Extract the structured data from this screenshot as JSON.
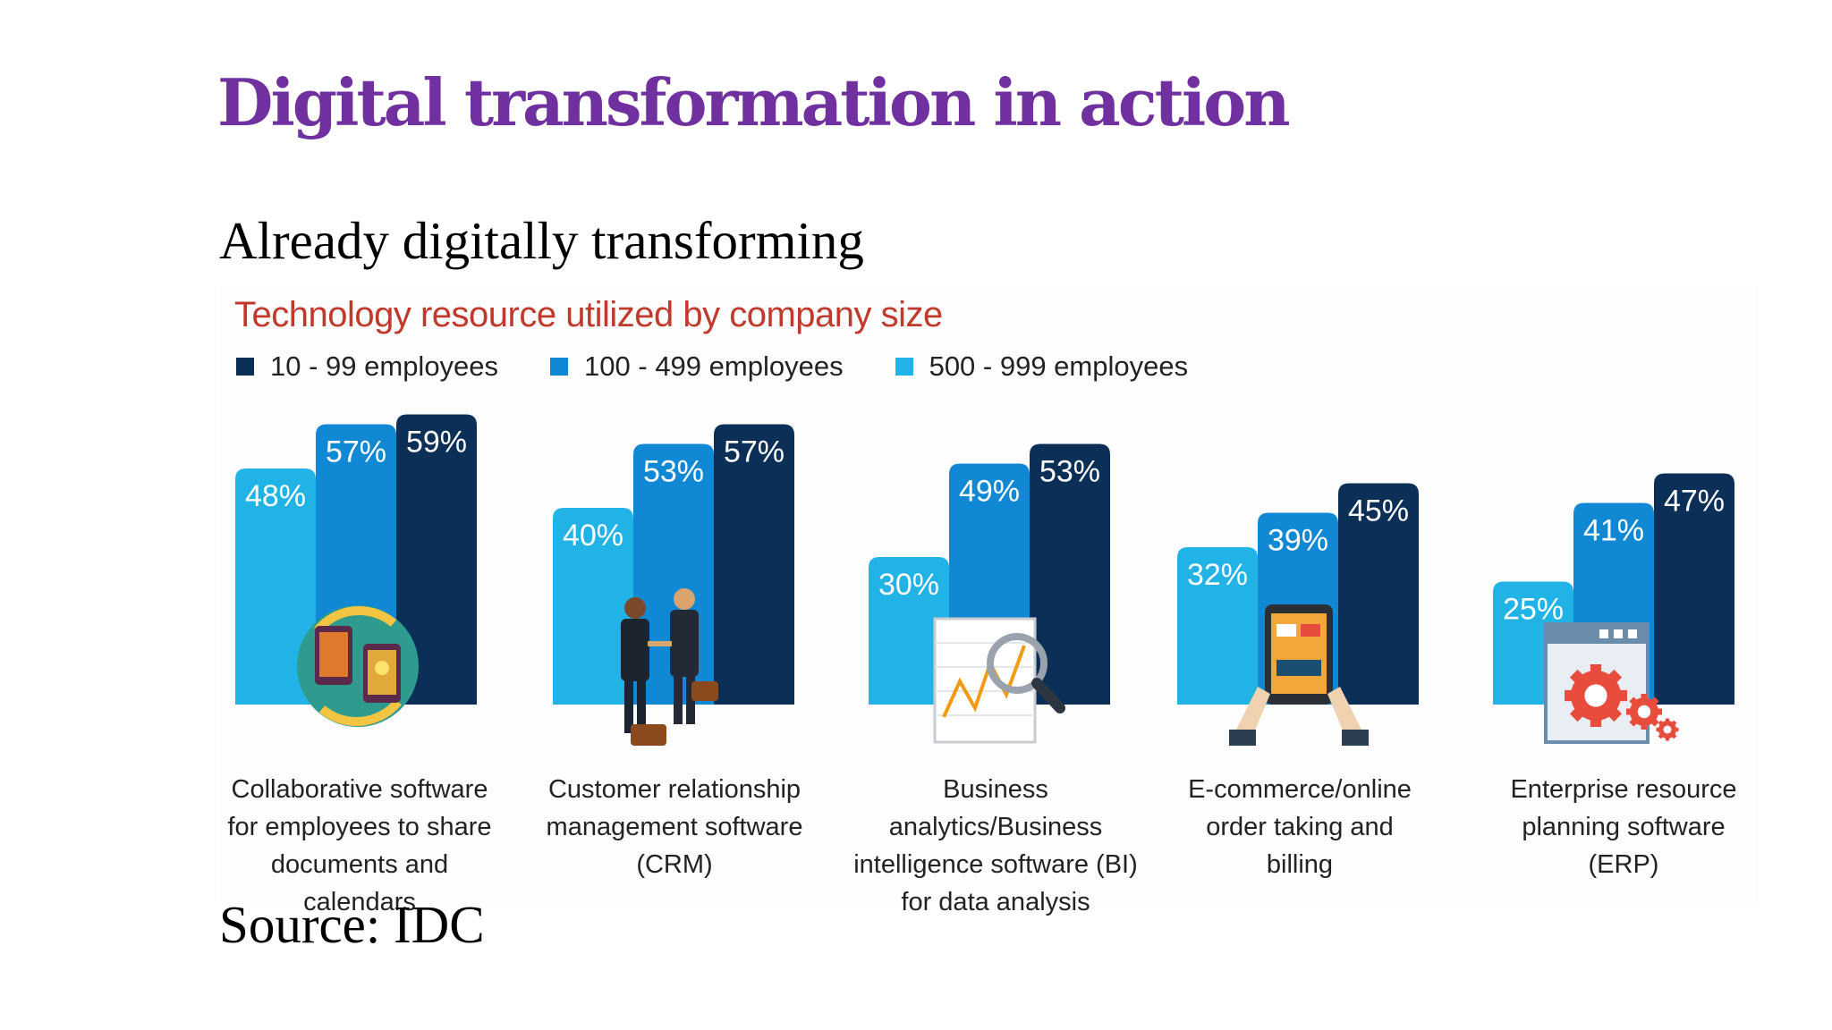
{
  "slide": {
    "title": "Digital transformation in action",
    "subtitle": "Already digitally transforming",
    "source": "Source: IDC"
  },
  "colors": {
    "title": "#7030a0",
    "chart_title": "#c0392b"
  },
  "chart_data": {
    "type": "bar",
    "title": "Technology resource utilized by company size",
    "xlabel": "",
    "ylabel": "",
    "ylim": [
      0,
      100
    ],
    "grid": false,
    "legend_position": "top-left",
    "value_suffix": "%",
    "categories": [
      "Collaborative software\nfor employees to share\ndocuments and calendars",
      "Customer relationship\nmanagement software\n(CRM)",
      "Business analytics/Business\nintelligence software (BI)\nfor data analysis",
      "E-commerce/online\norder taking and\nbilling",
      "Enterprise resource\nplanning software\n(ERP)"
    ],
    "icons": [
      "devices-sync-icon",
      "handshake-icon",
      "analytics-magnifier-icon",
      "tablet-shopping-icon",
      "erp-gears-icon"
    ],
    "legend_order": [
      0,
      1,
      2
    ],
    "series": [
      {
        "name": "10 - 99 employees",
        "color": "#0b2f57",
        "values": [
          59,
          57,
          53,
          45,
          47
        ]
      },
      {
        "name": "100 - 499 employees",
        "color": "#1188d3",
        "values": [
          57,
          53,
          49,
          39,
          41
        ]
      },
      {
        "name": "500 - 999 employees",
        "color": "#22b3e6",
        "values": [
          48,
          40,
          30,
          32,
          25
        ]
      }
    ]
  }
}
